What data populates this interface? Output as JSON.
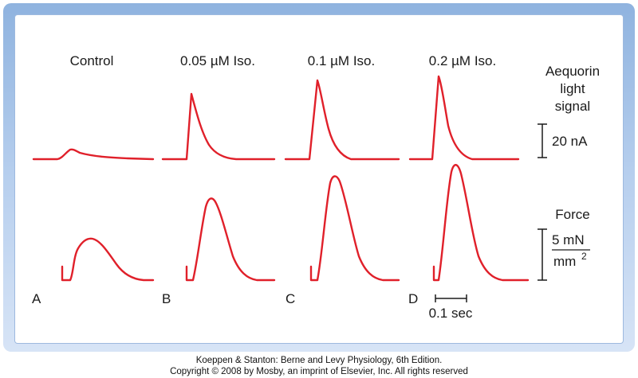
{
  "figure": {
    "conditions": [
      {
        "label": "Control",
        "panel": "A"
      },
      {
        "label": "0.05 µM Iso.",
        "panel": "B"
      },
      {
        "label": "0.1 µM Iso.",
        "panel": "C"
      },
      {
        "label": "0.2 µM Iso.",
        "panel": "D"
      }
    ],
    "aequorin": {
      "label_lines": [
        "Aequorin",
        "light",
        "signal"
      ],
      "scale": "20 nA"
    },
    "force": {
      "label": "Force",
      "scale_num": "5 mN",
      "scale_den": "mm",
      "scale_den_sup": "2"
    },
    "time_scale": "0.1 sec",
    "colors": {
      "trace": "#e0202a",
      "frame": "#9dbce3"
    }
  },
  "footer": {
    "line1": "Koeppen & Stanton: Berne and Levy Physiology, 6th Edition.",
    "line2": "Copyright © 2008 by Mosby, an imprint of Elsevier, Inc. All rights reserved"
  }
}
